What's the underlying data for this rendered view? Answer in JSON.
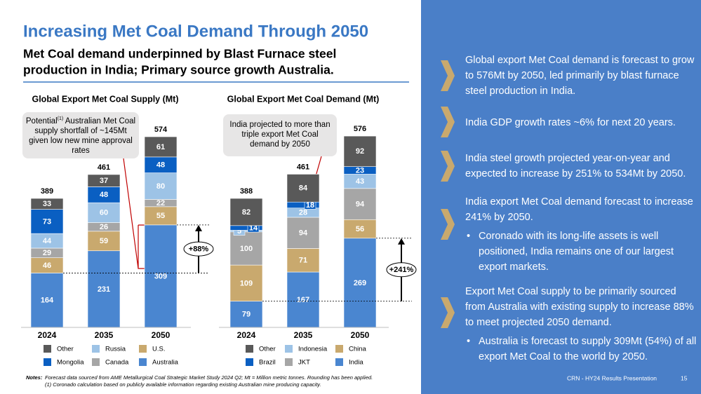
{
  "header": {
    "title": "Increasing Met Coal Demand Through 2050",
    "subtitle": [
      "Met Coal demand underpinned by Blast Furnace steel",
      "production in India; Primary source growth Australia."
    ]
  },
  "chart_data": [
    {
      "type": "bar",
      "stacked": true,
      "title": "Global Export Met Coal Supply (Mt)",
      "categories": [
        "2024",
        "2035",
        "2050"
      ],
      "series": [
        {
          "name": "Australia",
          "color": "#4a86d0",
          "values": [
            164,
            231,
            309
          ]
        },
        {
          "name": "U.S.",
          "color": "#c9a96e",
          "values": [
            46,
            59,
            55
          ]
        },
        {
          "name": "Canada",
          "color": "#a6a6a6",
          "values": [
            29,
            26,
            22
          ]
        },
        {
          "name": "Russia",
          "color": "#9dc3e6",
          "values": [
            44,
            60,
            80
          ]
        },
        {
          "name": "Mongolia",
          "color": "#0a5fc2",
          "values": [
            73,
            48,
            48
          ]
        },
        {
          "name": "Other",
          "color": "#595959",
          "values": [
            33,
            37,
            61
          ]
        }
      ],
      "totals": [
        389,
        461,
        574
      ],
      "growth_label": "+88%",
      "callout": [
        "Potential",
        "(1)",
        "Australian Met Coal supply shortfall of ~145Mt given low new mine approval rates"
      ]
    },
    {
      "type": "bar",
      "stacked": true,
      "title": "Global Export Met Coal Demand (Mt)",
      "categories": [
        "2024",
        "2035",
        "2050"
      ],
      "series": [
        {
          "name": "India",
          "color": "#4a86d0",
          "values": [
            79,
            167,
            269
          ]
        },
        {
          "name": "China",
          "color": "#c9a96e",
          "values": [
            109,
            71,
            56
          ]
        },
        {
          "name": "JKT",
          "color": "#a6a6a6",
          "values": [
            100,
            94,
            94
          ]
        },
        {
          "name": "Indonesia",
          "color": "#9dc3e6",
          "values": [
            5,
            28,
            43
          ]
        },
        {
          "name": "Brazil",
          "color": "#0a5fc2",
          "values": [
            14,
            18,
            23
          ]
        },
        {
          "name": "Other",
          "color": "#595959",
          "values": [
            82,
            84,
            92
          ]
        }
      ],
      "totals": [
        388,
        461,
        576
      ],
      "growth_label": "+241%",
      "callout": [
        "India projected to more than triple export Met Coal demand by 2050"
      ]
    }
  ],
  "panel": {
    "points": [
      {
        "text": "Global export Met Coal demand is forecast to grow to 576Mt by 2050, led primarily by blast furnace steel production in India."
      },
      {
        "text": "India GDP growth rates ~6% for next 20 years."
      },
      {
        "text": "India steel growth projected year-on-year and expected to increase by 251% to 534Mt by 2050."
      },
      {
        "text": "India export Met Coal demand forecast to increase 241% by 2050.",
        "bullets": [
          "Coronado with its long-life assets is well positioned, India remains one of our largest export markets."
        ]
      },
      {
        "text": "Export Met Coal supply to be primarily sourced from Australia with existing supply to increase 88% to meet projected 2050 demand.",
        "bullets": [
          "Australia is forecast to supply 309Mt (54%) of all export Met Coal to the world by 2050."
        ]
      }
    ]
  },
  "footer": {
    "notes_label": "Notes:",
    "notes": [
      "Forecast data sourced from AME Metallurgical Coal Strategic Market Study 2024 Q2; Mt = Million metric tonnes. Rounding has been applied.",
      "(1) Coronado calculation based on publicly available information regarding existing Australian mine producing capacity."
    ],
    "source": "CRN - HY24 Results Presentation",
    "page": 15
  }
}
